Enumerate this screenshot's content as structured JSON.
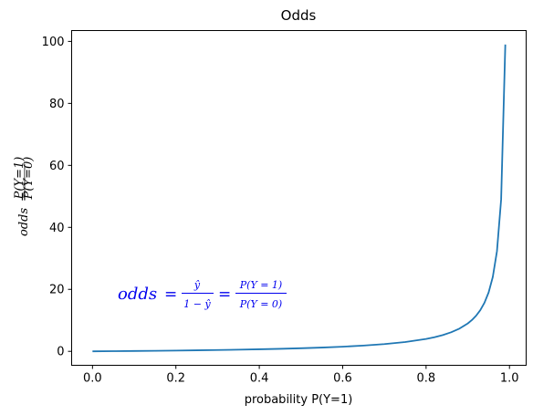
{
  "chart_data": {
    "type": "line",
    "title": "Odds",
    "xlabel": "probability P(Y=1)",
    "ylabel": {
      "lhs": "odds",
      "eq": "=",
      "num": "P(Y=1)",
      "den": "P(Y=0)"
    },
    "xlim": [
      -0.05,
      1.04
    ],
    "ylim": [
      -4.5,
      103.5
    ],
    "grid": false,
    "xticks": [
      0.0,
      0.2,
      0.4,
      0.6,
      0.8,
      1.0
    ],
    "xtick_labels": [
      "0.0",
      "0.2",
      "0.4",
      "0.6",
      "0.8",
      "1.0"
    ],
    "yticks": [
      0,
      20,
      40,
      60,
      80,
      100
    ],
    "ytick_labels": [
      "0",
      "20",
      "40",
      "60",
      "80",
      "100"
    ],
    "series": [
      {
        "color": "#1f77b4",
        "x": [
          0.0,
          0.05,
          0.1,
          0.15,
          0.2,
          0.25,
          0.3,
          0.35,
          0.4,
          0.45,
          0.5,
          0.55,
          0.6,
          0.65,
          0.7,
          0.75,
          0.8,
          0.82,
          0.84,
          0.86,
          0.88,
          0.9,
          0.91,
          0.92,
          0.93,
          0.94,
          0.95,
          0.96,
          0.97,
          0.98,
          0.99
        ],
        "y": [
          0.0,
          0.053,
          0.111,
          0.176,
          0.25,
          0.333,
          0.429,
          0.538,
          0.667,
          0.818,
          1.0,
          1.222,
          1.5,
          1.857,
          2.333,
          3.0,
          4.0,
          4.556,
          5.25,
          6.143,
          7.333,
          9.0,
          10.11,
          11.5,
          13.29,
          15.67,
          19.0,
          24.0,
          32.33,
          49.0,
          99.0
        ]
      }
    ],
    "annotation": {
      "color": "#0000ee",
      "lhs": "odds",
      "eq1": "=",
      "frac1_num": "ŷ",
      "frac1_den": "1 − ŷ",
      "eq2": "=",
      "frac2_num": "P(Y = 1)",
      "frac2_den": "P(Y = 0)"
    }
  }
}
